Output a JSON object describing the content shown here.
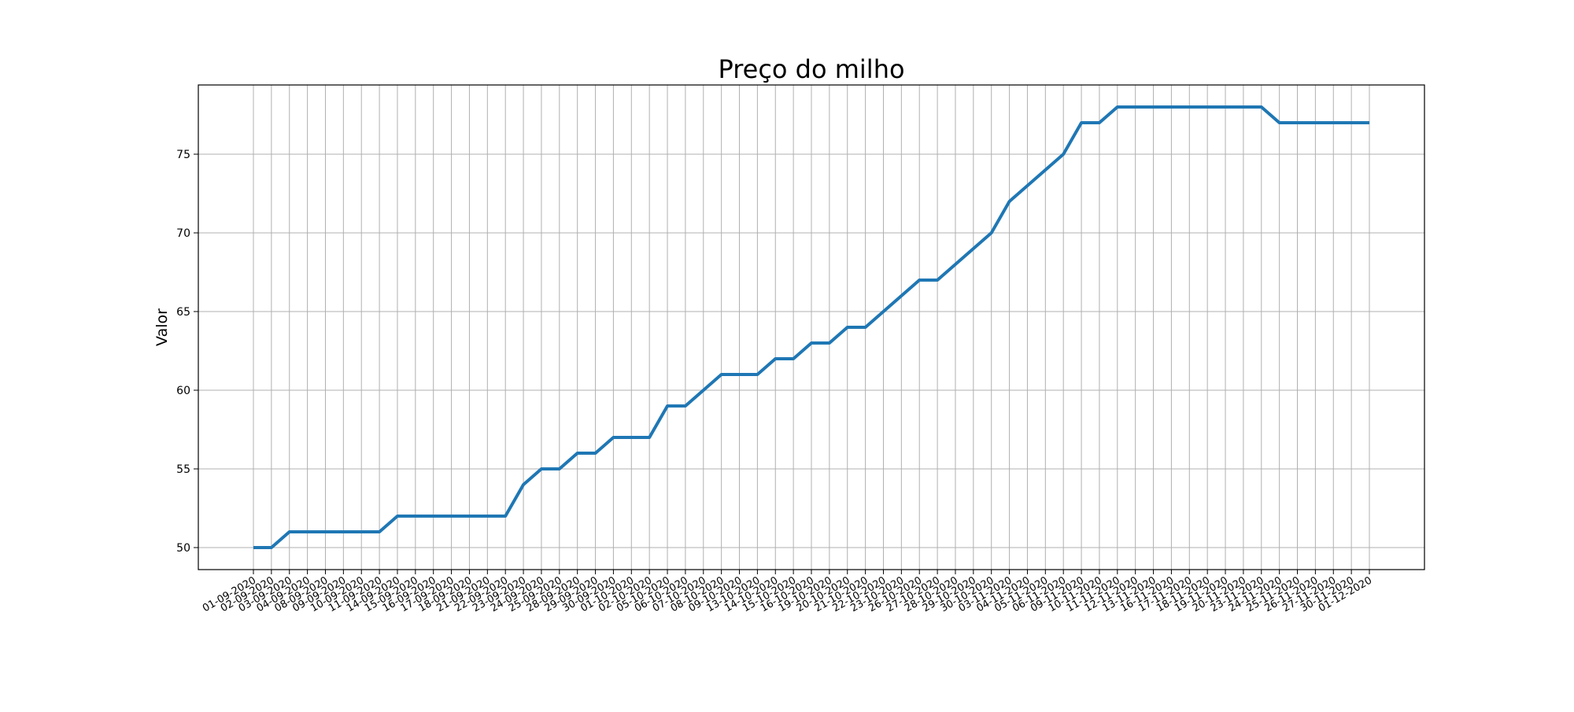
{
  "chart_data": {
    "type": "line",
    "title": "Preço do milho",
    "xlabel": "",
    "ylabel": "Valor",
    "grid": true,
    "ylim": [
      48.6,
      79.4
    ],
    "yticks": [
      50,
      55,
      60,
      65,
      70,
      75
    ],
    "line_color": "#1f77b4",
    "x": [
      "01-09-2020",
      "02-09-2020",
      "03-09-2020",
      "04-09-2020",
      "08-09-2020",
      "09-09-2020",
      "10-09-2020",
      "11-09-2020",
      "14-09-2020",
      "15-09-2020",
      "16-09-2020",
      "17-09-2020",
      "18-09-2020",
      "21-09-2020",
      "22-09-2020",
      "23-09-2020",
      "24-09-2020",
      "25-09-2020",
      "28-09-2020",
      "29-09-2020",
      "30-09-2020",
      "01-10-2020",
      "02-10-2020",
      "05-10-2020",
      "06-10-2020",
      "07-10-2020",
      "08-10-2020",
      "09-10-2020",
      "13-10-2020",
      "14-10-2020",
      "15-10-2020",
      "16-10-2020",
      "19-10-2020",
      "20-10-2020",
      "21-10-2020",
      "22-10-2020",
      "23-10-2020",
      "26-10-2020",
      "27-10-2020",
      "28-10-2020",
      "29-10-2020",
      "30-10-2020",
      "03-11-2020",
      "04-11-2020",
      "05-11-2020",
      "06-11-2020",
      "09-11-2020",
      "10-11-2020",
      "11-11-2020",
      "12-11-2020",
      "13-11-2020",
      "16-11-2020",
      "17-11-2020",
      "18-11-2020",
      "19-11-2020",
      "20-11-2020",
      "23-11-2020",
      "24-11-2020",
      "25-11-2020",
      "26-11-2020",
      "27-11-2020",
      "30-11-2020",
      "01-12-2020"
    ],
    "series": [
      {
        "values": [
          50,
          50,
          51,
          51,
          51,
          51,
          51,
          51,
          52,
          52,
          52,
          52,
          52,
          52,
          52,
          54,
          55,
          55,
          56,
          56,
          57,
          57,
          57,
          59,
          59,
          60,
          61,
          61,
          61,
          62,
          62,
          63,
          63,
          64,
          64,
          65,
          66,
          67,
          67,
          68,
          69,
          70,
          72,
          73,
          74,
          75,
          77,
          77,
          78,
          78,
          78,
          78,
          78,
          78,
          78,
          78,
          78,
          77,
          77,
          77,
          77,
          77,
          77
        ]
      }
    ]
  }
}
